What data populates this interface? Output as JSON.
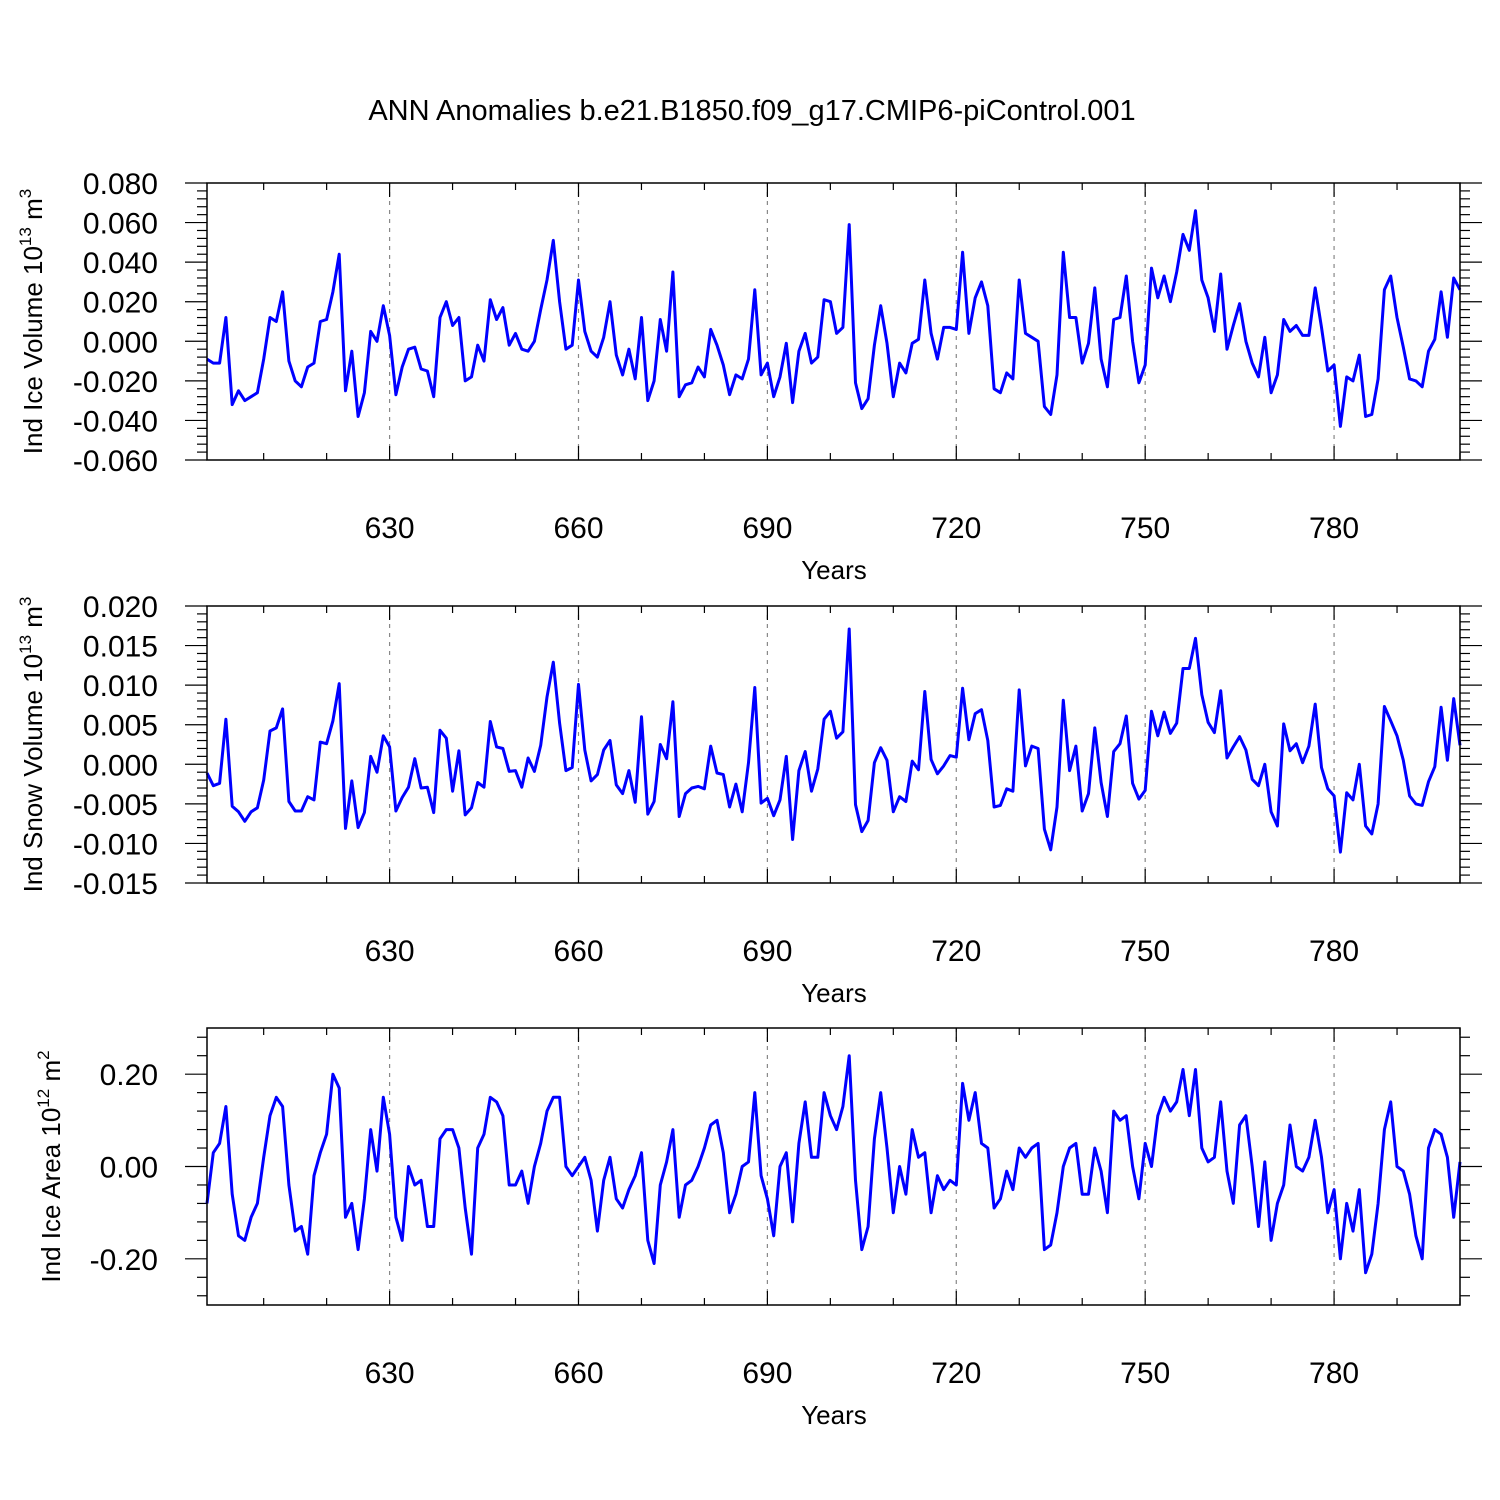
{
  "title": "ANN Anomalies b.e21.B1850.f09_g17.CMIP6-piControl.001",
  "colors": {
    "line": "#0000ff",
    "axis": "#000000",
    "grid": "#888888"
  },
  "chart_data": [
    {
      "type": "line",
      "title": "ANN Anomalies b.e21.B1850.f09_g17.CMIP6-piControl.001",
      "ylabel": {
        "text": "Ind Ice Volume 10",
        "exp": "13",
        "unit": "m",
        "unit_exp": "3"
      },
      "xlabel": "Years",
      "xlim": [
        601,
        800
      ],
      "ylim": [
        -0.06,
        0.08
      ],
      "xticks": [
        630,
        660,
        690,
        720,
        750,
        780
      ],
      "xtick_labels": [
        "630",
        "660",
        "690",
        "720",
        "750",
        "780"
      ],
      "yticks": [
        -0.06,
        -0.04,
        -0.02,
        0.0,
        0.02,
        0.04,
        0.06,
        0.08
      ],
      "ytick_labels": [
        "-0.060",
        "-0.040",
        "-0.020",
        "0.000",
        "0.020",
        "0.040",
        "0.060",
        "0.080"
      ],
      "grid": "vertical dashed at major x ticks",
      "x_start": 601,
      "series": [
        {
          "values": [
            -0.009,
            -0.011,
            -0.011,
            0.012,
            -0.032,
            -0.025,
            -0.03,
            -0.028,
            -0.026,
            -0.009,
            0.012,
            0.01,
            0.025,
            -0.01,
            -0.02,
            -0.023,
            -0.013,
            -0.011,
            0.01,
            0.011,
            0.025,
            0.044,
            -0.025,
            -0.005,
            -0.038,
            -0.026,
            0.005,
            0.0,
            0.018,
            0.003,
            -0.027,
            -0.013,
            -0.004,
            -0.003,
            -0.014,
            -0.015,
            -0.028,
            0.012,
            0.02,
            0.008,
            0.012,
            -0.02,
            -0.018,
            -0.002,
            -0.01,
            0.021,
            0.011,
            0.017,
            -0.002,
            0.004,
            -0.004,
            -0.005,
            0.0,
            0.016,
            0.031,
            0.051,
            0.02,
            -0.004,
            -0.002,
            0.031,
            0.005,
            -0.005,
            -0.008,
            0.002,
            0.02,
            -0.007,
            -0.017,
            -0.004,
            -0.019,
            0.012,
            -0.03,
            -0.02,
            0.011,
            -0.005,
            0.035,
            -0.028,
            -0.022,
            -0.021,
            -0.013,
            -0.018,
            0.006,
            -0.002,
            -0.012,
            -0.027,
            -0.017,
            -0.019,
            -0.009,
            0.026,
            -0.017,
            -0.011,
            -0.028,
            -0.018,
            -0.001,
            -0.031,
            -0.005,
            0.004,
            -0.011,
            -0.008,
            0.021,
            0.02,
            0.004,
            0.007,
            0.059,
            -0.021,
            -0.034,
            -0.029,
            -0.002,
            0.018,
            -0.001,
            -0.028,
            -0.011,
            -0.016,
            -0.001,
            0.001,
            0.031,
            0.004,
            -0.009,
            0.007,
            0.007,
            0.006,
            0.045,
            0.004,
            0.022,
            0.03,
            0.018,
            -0.024,
            -0.026,
            -0.016,
            -0.019,
            0.031,
            0.004,
            0.002,
            0.0,
            -0.033,
            -0.037,
            -0.017,
            0.045,
            0.012,
            0.012,
            -0.011,
            -0.001,
            0.027,
            -0.009,
            -0.023,
            0.011,
            0.012,
            0.033,
            0.0,
            -0.021,
            -0.012,
            0.037,
            0.022,
            0.033,
            0.02,
            0.035,
            0.054,
            0.046,
            0.066,
            0.031,
            0.022,
            0.005,
            0.034,
            -0.004,
            0.008,
            0.019,
            0.0,
            -0.011,
            -0.018,
            0.002,
            -0.026,
            -0.017,
            0.011,
            0.005,
            0.008,
            0.003,
            0.003,
            0.027,
            0.007,
            -0.015,
            -0.012,
            -0.043,
            -0.018,
            -0.02,
            -0.007,
            -0.038,
            -0.037,
            -0.019,
            0.026,
            0.033,
            0.012,
            -0.003,
            -0.019,
            -0.02,
            -0.023,
            -0.005,
            0.001,
            0.025,
            0.002,
            0.032,
            0.026
          ]
        }
      ]
    },
    {
      "type": "line",
      "ylabel": {
        "text": "Ind Snow Volume 10",
        "exp": "13",
        "unit": "m",
        "unit_exp": "3"
      },
      "xlabel": "Years",
      "xlim": [
        601,
        800
      ],
      "ylim": [
        -0.015,
        0.02
      ],
      "xticks": [
        630,
        660,
        690,
        720,
        750,
        780
      ],
      "xtick_labels": [
        "630",
        "660",
        "690",
        "720",
        "750",
        "780"
      ],
      "yticks": [
        -0.015,
        -0.01,
        -0.005,
        0.0,
        0.005,
        0.01,
        0.015,
        0.02
      ],
      "ytick_labels": [
        "-0.015",
        "-0.010",
        "-0.005",
        "0.000",
        "0.005",
        "0.010",
        "0.015",
        "0.020"
      ],
      "grid": "vertical dashed at major x ticks",
      "x_start": 601,
      "series": [
        {
          "values": [
            -0.0011,
            -0.0027,
            -0.0024,
            0.0057,
            -0.0053,
            -0.006,
            -0.0072,
            -0.006,
            -0.0055,
            -0.002,
            0.0042,
            0.0046,
            0.007,
            -0.0047,
            -0.0059,
            -0.0059,
            -0.0041,
            -0.0045,
            0.0028,
            0.0026,
            0.0055,
            0.0102,
            -0.0081,
            -0.0021,
            -0.008,
            -0.0061,
            0.001,
            -0.001,
            0.0036,
            0.0022,
            -0.0059,
            -0.0042,
            -0.0029,
            0.0007,
            -0.003,
            -0.0029,
            -0.0061,
            0.0043,
            0.0033,
            -0.0034,
            0.0017,
            -0.0064,
            -0.0055,
            -0.0023,
            -0.0029,
            0.0054,
            0.0022,
            0.002,
            -0.0009,
            -0.0008,
            -0.0029,
            0.0008,
            -0.0009,
            0.0024,
            0.0085,
            0.0129,
            0.0052,
            -0.0008,
            -0.0004,
            0.0101,
            0.0018,
            -0.0021,
            -0.0013,
            0.0018,
            0.003,
            -0.0026,
            -0.0037,
            -0.0008,
            -0.0048,
            0.006,
            -0.0063,
            -0.0047,
            0.0025,
            0.0007,
            0.0079,
            -0.0066,
            -0.0037,
            -0.003,
            -0.0028,
            -0.0031,
            0.0023,
            -0.0011,
            -0.0013,
            -0.0054,
            -0.0025,
            -0.006,
            0.0002,
            0.0097,
            -0.0049,
            -0.0043,
            -0.0065,
            -0.0045,
            0.001,
            -0.0095,
            -0.0008,
            0.0016,
            -0.0034,
            -0.0006,
            0.0057,
            0.0067,
            0.0033,
            0.0041,
            0.0171,
            -0.0051,
            -0.0085,
            -0.0071,
            0.0002,
            0.0021,
            0.0005,
            -0.006,
            -0.0041,
            -0.0047,
            0.0004,
            -0.0007,
            0.0092,
            0.0006,
            -0.0012,
            -0.0002,
            0.0011,
            0.0009,
            0.0096,
            0.0031,
            0.0064,
            0.0069,
            0.003,
            -0.0054,
            -0.0052,
            -0.0031,
            -0.0034,
            0.0094,
            -0.0002,
            0.0023,
            0.002,
            -0.0082,
            -0.0108,
            -0.0054,
            0.0081,
            -0.0008,
            0.0023,
            -0.0059,
            -0.0037,
            0.0046,
            -0.0023,
            -0.0066,
            0.0016,
            0.0026,
            0.0061,
            -0.0024,
            -0.0044,
            -0.0033,
            0.0067,
            0.0036,
            0.0066,
            0.0039,
            0.0052,
            0.0121,
            0.0121,
            0.0159,
            0.0088,
            0.0053,
            0.004,
            0.0093,
            0.0008,
            0.0022,
            0.0035,
            0.0018,
            -0.0019,
            -0.0027,
            0.0,
            -0.006,
            -0.0078,
            0.0051,
            0.0017,
            0.0026,
            0.0002,
            0.0023,
            0.0076,
            -0.0004,
            -0.0031,
            -0.004,
            -0.0111,
            -0.0036,
            -0.0045,
            0.0,
            -0.0078,
            -0.0088,
            -0.005,
            0.0073,
            0.0055,
            0.0036,
            0.0005,
            -0.004,
            -0.005,
            -0.0052,
            -0.0022,
            -0.0003,
            0.0072,
            0.0005,
            0.0083,
            0.0024
          ]
        }
      ]
    },
    {
      "type": "line",
      "ylabel": {
        "text": "Ind Ice Area 10",
        "exp": "12",
        "unit": "m",
        "unit_exp": "2"
      },
      "xlabel": "Years",
      "xlim": [
        601,
        800
      ],
      "ylim": [
        -0.3,
        0.3
      ],
      "xticks": [
        630,
        660,
        690,
        720,
        750,
        780
      ],
      "xtick_labels": [
        "630",
        "660",
        "690",
        "720",
        "750",
        "780"
      ],
      "yticks": [
        -0.2,
        0.0,
        0.2
      ],
      "ytick_labels": [
        "-0.20",
        "0.00",
        "0.20"
      ],
      "grid": "vertical dashed at major x ticks",
      "x_start": 601,
      "series": [
        {
          "values": [
            -0.08,
            0.03,
            0.05,
            0.13,
            -0.06,
            -0.15,
            -0.16,
            -0.11,
            -0.08,
            0.02,
            0.11,
            0.15,
            0.13,
            -0.04,
            -0.14,
            -0.13,
            -0.19,
            -0.02,
            0.03,
            0.07,
            0.2,
            0.17,
            -0.11,
            -0.08,
            -0.18,
            -0.07,
            0.08,
            -0.01,
            0.15,
            0.07,
            -0.11,
            -0.16,
            0.0,
            -0.04,
            -0.03,
            -0.13,
            -0.13,
            0.06,
            0.08,
            0.08,
            0.04,
            -0.09,
            -0.19,
            0.04,
            0.07,
            0.15,
            0.14,
            0.11,
            -0.04,
            -0.04,
            -0.01,
            -0.08,
            0.0,
            0.05,
            0.12,
            0.15,
            0.15,
            0.0,
            -0.02,
            0.0,
            0.02,
            -0.03,
            -0.14,
            -0.03,
            0.02,
            -0.07,
            -0.09,
            -0.05,
            -0.02,
            0.03,
            -0.16,
            -0.21,
            -0.04,
            0.01,
            0.08,
            -0.11,
            -0.04,
            -0.03,
            0.0,
            0.04,
            0.09,
            0.1,
            0.03,
            -0.1,
            -0.06,
            0.0,
            0.01,
            0.16,
            -0.02,
            -0.07,
            -0.15,
            0.0,
            0.03,
            -0.12,
            0.05,
            0.14,
            0.02,
            0.02,
            0.16,
            0.11,
            0.08,
            0.13,
            0.24,
            -0.03,
            -0.18,
            -0.13,
            0.06,
            0.16,
            0.04,
            -0.1,
            0.0,
            -0.06,
            0.08,
            0.02,
            0.03,
            -0.1,
            -0.02,
            -0.05,
            -0.03,
            -0.04,
            0.18,
            0.1,
            0.16,
            0.05,
            0.04,
            -0.09,
            -0.07,
            -0.01,
            -0.05,
            0.04,
            0.02,
            0.04,
            0.05,
            -0.18,
            -0.17,
            -0.1,
            0.0,
            0.04,
            0.05,
            -0.06,
            -0.06,
            0.04,
            -0.01,
            -0.1,
            0.12,
            0.1,
            0.11,
            0.0,
            -0.07,
            0.05,
            0.0,
            0.11,
            0.15,
            0.12,
            0.14,
            0.21,
            0.11,
            0.21,
            0.04,
            0.01,
            0.02,
            0.14,
            -0.01,
            -0.08,
            0.09,
            0.11,
            0.0,
            -0.13,
            0.01,
            -0.16,
            -0.08,
            -0.04,
            0.09,
            0.0,
            -0.01,
            0.02,
            0.1,
            0.02,
            -0.1,
            -0.05,
            -0.2,
            -0.08,
            -0.14,
            -0.05,
            -0.23,
            -0.19,
            -0.08,
            0.08,
            0.14,
            0.0,
            -0.01,
            -0.06,
            -0.15,
            -0.2,
            0.04,
            0.08,
            0.07,
            0.02,
            -0.11,
            0.01
          ]
        }
      ]
    }
  ]
}
